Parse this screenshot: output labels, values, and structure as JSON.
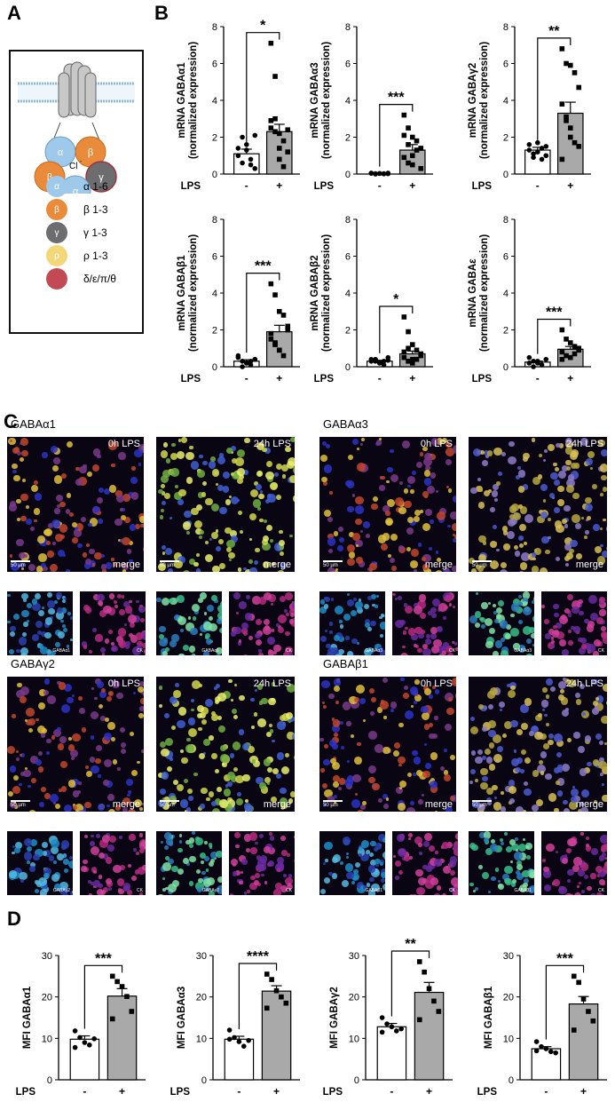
{
  "panels": {
    "A": "A",
    "B": "B",
    "C": "C",
    "D": "D"
  },
  "legendA": [
    {
      "symbol": "α",
      "label": "α 1-6",
      "color": "#9ec9ea",
      "icon": "alpha-subunit-icon"
    },
    {
      "symbol": "β",
      "label": "β 1-3",
      "color": "#e98b3a",
      "icon": "beta-subunit-icon"
    },
    {
      "symbol": "γ",
      "label": "γ 1-3",
      "color": "#6d6d70",
      "icon": "gamma-subunit-icon"
    },
    {
      "symbol": "ρ",
      "label": "ρ 1-3",
      "color": "#f3d77b",
      "icon": "rho-subunit-icon"
    },
    {
      "symbol": "",
      "label": "δ/ε/π/θ",
      "color": "#c24a55",
      "icon": "delta-subunit-icon"
    }
  ],
  "diagramA": {
    "chloride": "Cl",
    "chloride_charge": "-",
    "subunits": [
      "α",
      "β",
      "β",
      "γ",
      "α"
    ]
  },
  "chart_data": [
    {
      "type": "bar",
      "panel": "B",
      "ylabel_line1": "mRNA GABAα1",
      "ylabel_line2": "(normalized expression)",
      "categories": [
        "-",
        "+"
      ],
      "xlabel": "LPS",
      "values": [
        1.1,
        2.3
      ],
      "sem": [
        0.25,
        0.4
      ],
      "ylim": [
        0,
        8
      ],
      "yticks": [
        0,
        2,
        4,
        6,
        8
      ],
      "significance": "*",
      "points": [
        [
          1.4,
          2.0,
          1.3,
          0.5,
          0.3,
          1.0,
          0.6,
          1.6,
          0.8,
          2.1
        ],
        [
          7.1,
          5.3,
          2.2,
          1.8,
          1.2,
          2.9,
          3.0,
          0.8,
          0.4,
          2.4,
          2.5,
          2.3,
          1.4
        ]
      ]
    },
    {
      "type": "bar",
      "panel": "B",
      "ylabel_line1": "mRNA GABAα3",
      "ylabel_line2": "(normalized expression)",
      "categories": [
        "-",
        "+"
      ],
      "xlabel": "LPS",
      "values": [
        0.0,
        1.3
      ],
      "sem": [
        0.02,
        0.3
      ],
      "ylim": [
        0,
        8
      ],
      "yticks": [
        0,
        2,
        4,
        6,
        8
      ],
      "significance": "***",
      "points": [
        [
          0.05,
          0.02,
          0.03,
          0.01,
          0.02,
          0.04,
          0.0,
          0.03,
          0.02,
          0.05
        ],
        [
          3.2,
          2.5,
          2.0,
          1.8,
          1.4,
          0.9,
          0.6,
          1.0,
          1.3,
          0.3,
          2.1,
          1.6,
          0.5
        ]
      ]
    },
    {
      "type": "bar",
      "panel": "B",
      "ylabel_line1": "mRNA GABAγ2",
      "ylabel_line2": "(normalized expression)",
      "categories": [
        "-",
        "+"
      ],
      "xlabel": "LPS",
      "values": [
        1.3,
        3.3
      ],
      "sem": [
        0.15,
        0.6
      ],
      "ylim": [
        0,
        8
      ],
      "yticks": [
        0,
        2,
        4,
        6,
        8
      ],
      "significance": "**",
      "points": [
        [
          1.3,
          1.1,
          1.7,
          0.8,
          1.5,
          1.6,
          0.9,
          1.2,
          1.4,
          1.0
        ],
        [
          6.8,
          6.0,
          5.9,
          5.5,
          4.7,
          3.8,
          2.9,
          2.0,
          1.7,
          1.5,
          0.8,
          3.1,
          2.5
        ]
      ]
    },
    {
      "type": "bar",
      "panel": "B",
      "ylabel_line1": "mRNA GABAβ1",
      "ylabel_line2": "(normalized expression)",
      "categories": [
        "-",
        "+"
      ],
      "xlabel": "LPS",
      "values": [
        0.3,
        1.9
      ],
      "sem": [
        0.08,
        0.35
      ],
      "ylim": [
        0,
        8
      ],
      "yticks": [
        0,
        2,
        4,
        6,
        8
      ],
      "significance": "***",
      "points": [
        [
          0.6,
          0.3,
          0.2,
          0.1,
          0.4,
          0.5,
          0.0,
          0.2,
          0.3,
          0.4
        ],
        [
          4.5,
          3.9,
          3.0,
          2.8,
          2.2,
          1.8,
          1.2,
          0.9,
          0.6,
          2.0,
          1.5,
          1.3,
          0.9
        ]
      ]
    },
    {
      "type": "bar",
      "panel": "B",
      "ylabel_line1": "mRNA GABAβ2",
      "ylabel_line2": "(normalized expression)",
      "categories": [
        "-",
        "+"
      ],
      "xlabel": "LPS",
      "values": [
        0.3,
        0.7
      ],
      "sem": [
        0.05,
        0.15
      ],
      "ylim": [
        0,
        8
      ],
      "yticks": [
        0,
        2,
        4,
        6,
        8
      ],
      "significance": "*",
      "points": [
        [
          0.4,
          0.3,
          0.2,
          0.1,
          0.5,
          0.3,
          0.4,
          0.2,
          0.3,
          0.35
        ],
        [
          2.7,
          1.9,
          1.2,
          0.9,
          0.7,
          0.5,
          0.3,
          0.2,
          0.4,
          0.6,
          0.8,
          1.0,
          0.4
        ]
      ]
    },
    {
      "type": "bar",
      "panel": "B",
      "ylabel_line1": "mRNA GABAε",
      "ylabel_line2": "(normalized expression)",
      "categories": [
        "-",
        "+"
      ],
      "xlabel": "LPS",
      "values": [
        0.25,
        0.95
      ],
      "sem": [
        0.06,
        0.15
      ],
      "ylim": [
        0,
        8
      ],
      "yticks": [
        0,
        2,
        4,
        6,
        8
      ],
      "significance": "***",
      "points": [
        [
          0.5,
          0.3,
          0.2,
          0.1,
          0.4,
          0.2,
          0.0,
          0.3
        ],
        [
          2.0,
          1.5,
          1.3,
          1.1,
          0.9,
          0.8,
          0.6,
          0.5,
          0.7,
          1.0,
          0.4
        ]
      ]
    },
    {
      "type": "bar",
      "panel": "D",
      "ylabel_line1": "MFI GABAα1",
      "ylabel_line2": "",
      "categories": [
        "-",
        "+"
      ],
      "xlabel": "LPS",
      "values": [
        9.8,
        20.2
      ],
      "sem": [
        0.8,
        1.8
      ],
      "ylim": [
        0,
        30
      ],
      "yticks": [
        0,
        10,
        20,
        30
      ],
      "significance": "***",
      "points": [
        [
          11.8,
          10.2,
          9.0,
          8.4,
          9.9,
          7.8
        ],
        [
          25.0,
          23.7,
          22.5,
          20.1,
          16.5,
          14.7
        ]
      ]
    },
    {
      "type": "bar",
      "panel": "D",
      "ylabel_line1": "MFI GABAα3",
      "ylabel_line2": "",
      "categories": [
        "-",
        "+"
      ],
      "xlabel": "LPS",
      "values": [
        9.8,
        21.4
      ],
      "sem": [
        0.7,
        1.3
      ],
      "ylim": [
        0,
        30
      ],
      "yticks": [
        0,
        10,
        20,
        30
      ],
      "significance": "****",
      "points": [
        [
          12.0,
          10.2,
          9.2,
          8.1,
          9.5,
          9.8
        ],
        [
          25.5,
          24.2,
          21.5,
          20.0,
          18.5,
          17.3
        ]
      ]
    },
    {
      "type": "bar",
      "panel": "D",
      "ylabel_line1": "MFI GABAγ2",
      "ylabel_line2": "",
      "categories": [
        "-",
        "+"
      ],
      "xlabel": "LPS",
      "values": [
        12.8,
        21.1
      ],
      "sem": [
        0.8,
        2.4
      ],
      "ylim": [
        0,
        30
      ],
      "yticks": [
        0,
        10,
        20,
        30
      ],
      "significance": "**",
      "points": [
        [
          15.0,
          13.5,
          12.8,
          11.8,
          12.3,
          11.5
        ],
        [
          28.5,
          26.0,
          22.0,
          19.0,
          16.5,
          14.5
        ]
      ]
    },
    {
      "type": "bar",
      "panel": "D",
      "ylabel_line1": "MFI GABAβ1",
      "ylabel_line2": "",
      "categories": [
        "-",
        "+"
      ],
      "xlabel": "LPS",
      "values": [
        7.5,
        18.3
      ],
      "sem": [
        0.5,
        1.8
      ],
      "ylim": [
        0,
        30
      ],
      "yticks": [
        0,
        10,
        20,
        30
      ],
      "significance": "***",
      "points": [
        [
          9.2,
          8.0,
          7.5,
          6.8,
          6.5,
          7.0
        ],
        [
          25.0,
          23.5,
          19.5,
          16.5,
          14.2,
          12.0
        ]
      ]
    }
  ],
  "panelC": [
    {
      "title": "GABAα1",
      "left_label": "0h LPS",
      "right_label": "24h LPS",
      "merge": "merge",
      "scale": "50 µm",
      "thumb_green": "GABAα1",
      "thumb_red": "CK"
    },
    {
      "title": "GABAα3",
      "left_label": "0h LPS",
      "right_label": "24h LPS",
      "merge": "merge",
      "scale": "50 µm",
      "thumb_green": "GABAα3",
      "thumb_red": "CK"
    },
    {
      "title": "GABAγ2",
      "left_label": "0h LPS",
      "right_label": "24h LPS",
      "merge": "merge",
      "scale": "50 µm",
      "thumb_green": "GABAγ2",
      "thumb_red": "CK"
    },
    {
      "title": "GABAβ1",
      "left_label": "0h LPS",
      "right_label": "24h LPS",
      "merge": "merge",
      "scale": "50 µm",
      "thumb_green": "GABAβ1",
      "thumb_red": "CK"
    }
  ]
}
